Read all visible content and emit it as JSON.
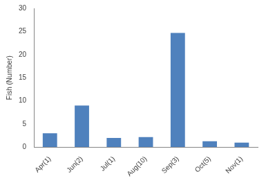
{
  "chart_data": {
    "type": "bar",
    "y_label": "Fish (Number)",
    "categories": [
      "Apr(1)",
      "Jun(2)",
      "Jul(1)",
      "Aug(10)",
      "Sep(3)",
      "Oct(5)",
      "Nov(1)"
    ],
    "values": [
      3.0,
      9.0,
      2.0,
      2.2,
      24.7,
      1.3,
      1.0
    ],
    "color": "#4f81bd",
    "ylim": [
      0,
      30
    ],
    "yticks": [
      0,
      5,
      10,
      15,
      20,
      25,
      30
    ],
    "grid": false
  }
}
